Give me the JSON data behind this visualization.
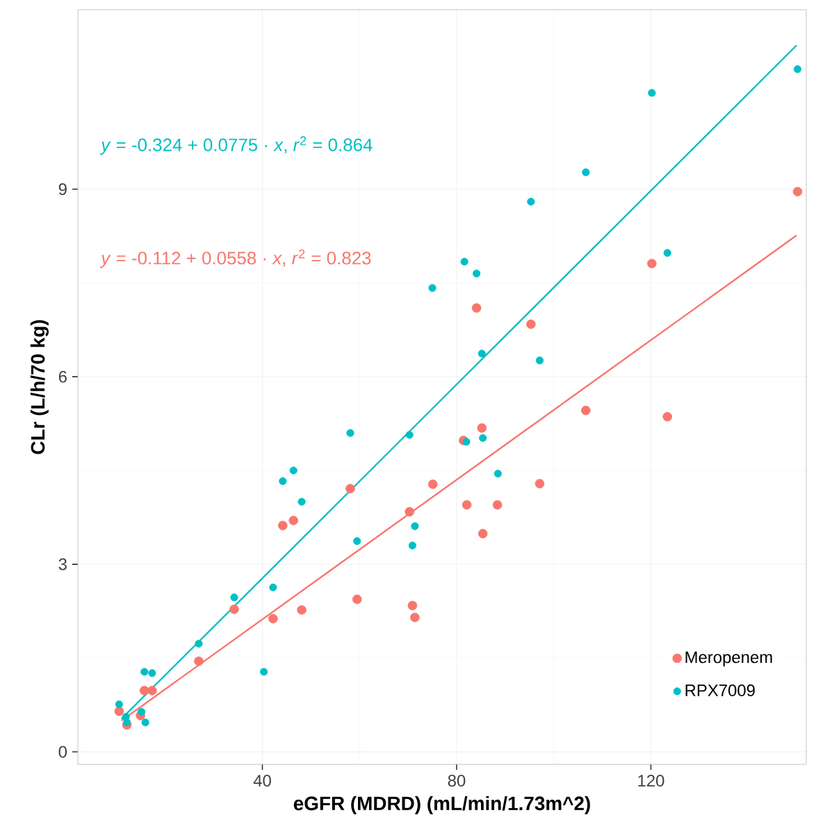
{
  "chart_data": {
    "type": "scatter",
    "xlabel": "eGFR (MDRD) (mL/min/1.73m^2)",
    "ylabel": "CLr (L/h/70 kg)",
    "xlim": [
      2,
      152
    ],
    "ylim": [
      -0.2,
      11.87
    ],
    "xticks": [
      40,
      80,
      120
    ],
    "yticks": [
      0,
      3,
      6,
      9
    ],
    "grid": true,
    "legend": "bottom right",
    "marker": "circle",
    "annotations": [
      "*y* = -0.324 + 0.0775 · *x*,  *r*$^{2}$ = 0.864",
      "*y* = -0.112 + 0.0558 · *x*,  *r*$^{2}$ = 0.823"
    ],
    "series": [
      {
        "name": "Meropenem",
        "color": "#f8766d",
        "x": [
          10.5,
          12.1,
          14.9,
          15.7,
          17.3,
          26.9,
          34.2,
          42.2,
          44.2,
          46.4,
          48.1,
          58.1,
          59.5,
          70.3,
          70.9,
          71.4,
          75.1,
          84.1,
          95.3,
          106.6,
          120.2,
          123.4,
          150.2,
          81.4,
          85.2,
          82.1,
          88.4,
          85.4,
          97.1
        ],
        "values": [
          0.65,
          0.43,
          0.58,
          0.98,
          0.98,
          1.45,
          2.28,
          2.13,
          3.62,
          3.7,
          2.27,
          4.21,
          2.44,
          3.84,
          2.34,
          2.15,
          4.28,
          7.1,
          6.84,
          5.46,
          7.81,
          5.36,
          8.96,
          4.98,
          5.18,
          3.95,
          3.95,
          3.49,
          4.29
        ]
      },
      {
        "name": "RPX7009",
        "color": "#00bfc4",
        "x": [
          10.5,
          11.9,
          12.1,
          15.1,
          15.9,
          15.7,
          17.3,
          26.9,
          34.2,
          40.3,
          42.2,
          44.2,
          46.4,
          48.1,
          58.1,
          59.5,
          70.3,
          71.4,
          70.9,
          75.0,
          81.6,
          84.1,
          85.2,
          95.3,
          97.1,
          106.6,
          120.2,
          123.4,
          150.2,
          82.0,
          85.4,
          88.5
        ],
        "values": [
          0.76,
          0.56,
          0.47,
          0.64,
          0.47,
          1.28,
          1.26,
          1.73,
          2.47,
          1.28,
          2.63,
          4.33,
          4.5,
          4.0,
          5.1,
          3.37,
          5.07,
          3.61,
          3.3,
          7.42,
          7.84,
          7.65,
          6.37,
          8.8,
          6.26,
          9.27,
          10.54,
          7.98,
          10.92,
          4.96,
          5.02,
          4.45
        ]
      },
      {
        "type": "line",
        "marker": "none",
        "color": "#f8766d",
        "x": [
          11,
          150
        ],
        "values": [
          0.5,
          8.26
        ]
      },
      {
        "type": "line",
        "marker": "none",
        "color": "#00bfc4",
        "x": [
          11,
          150
        ],
        "values": [
          0.53,
          11.3
        ]
      }
    ]
  }
}
